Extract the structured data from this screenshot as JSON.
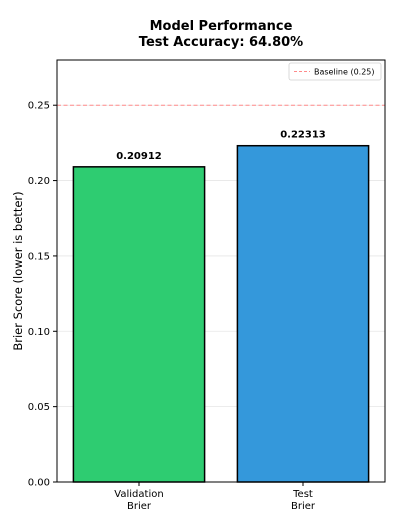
{
  "chart_data": {
    "type": "bar",
    "title": "Model Performance",
    "subtitle": "Test Accuracy: 64.80%",
    "categories": [
      "Validation\nBrier",
      "Test\nBrier"
    ],
    "values": [
      0.20912,
      0.22313
    ],
    "value_labels": [
      "0.20912",
      "0.22313"
    ],
    "bar_colors": [
      "#2ecc71",
      "#3498db"
    ],
    "bar_edge_color": "#000000",
    "xlabel": "",
    "ylabel": "Brier Score (lower is better)",
    "ylim": [
      0,
      0.28
    ],
    "yticks": [
      0,
      0.05,
      0.1,
      0.15,
      0.2,
      0.25
    ],
    "ytick_labels": [
      "0.00",
      "0.05",
      "0.10",
      "0.15",
      "0.20",
      "0.25"
    ],
    "grid": true,
    "grid_axis": "y",
    "baseline": {
      "value": 0.25,
      "label": "Baseline (0.25)",
      "color": "#ff8a8a",
      "style": "dashed"
    },
    "legend": {
      "placement": "top-right",
      "entries": [
        "Baseline (0.25)"
      ]
    }
  }
}
